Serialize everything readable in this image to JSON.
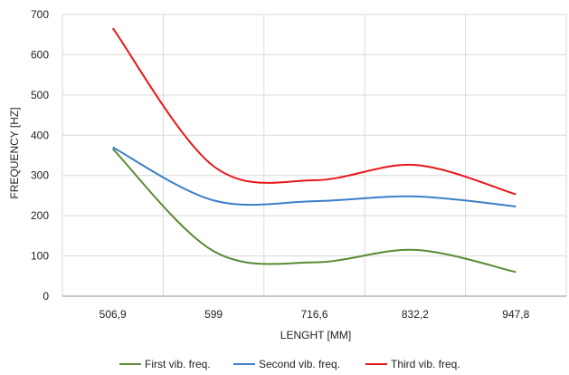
{
  "chart_data": {
    "type": "line",
    "categories": [
      "506,9",
      "599",
      "716,6",
      "832,2",
      "947,8"
    ],
    "xlabel": "LENGHT [MM]",
    "ylabel": "FREQUENCY [HZ]",
    "ylim": [
      0,
      700
    ],
    "yticks": [
      0,
      100,
      200,
      300,
      400,
      500,
      600,
      700
    ],
    "grid": true,
    "legend_position": "bottom",
    "series": [
      {
        "name": "First vib. freq.",
        "color": "#5a8a35",
        "values": [
          366,
          112,
          84,
          115,
          60
        ]
      },
      {
        "name": "Second vib. freq.",
        "color": "#3a7fc8",
        "values": [
          370,
          238,
          236,
          248,
          223
        ]
      },
      {
        "name": "Third vib. freq.",
        "color": "#e8171b",
        "values": [
          666,
          323,
          288,
          326,
          253
        ]
      }
    ]
  }
}
